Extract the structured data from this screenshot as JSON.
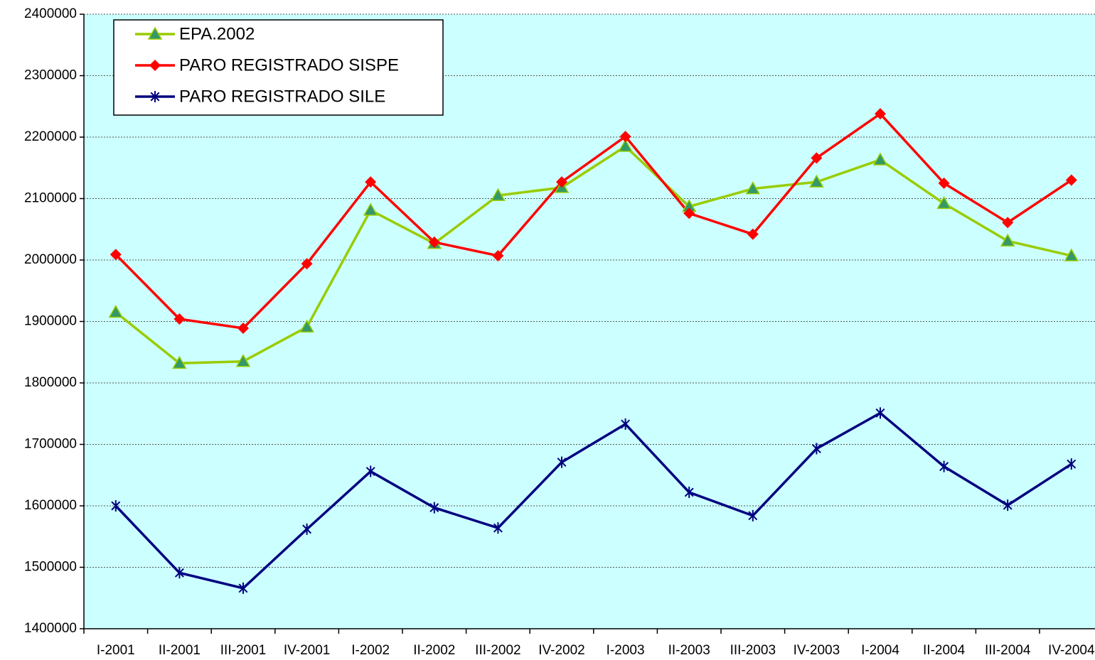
{
  "chart_data": {
    "type": "line",
    "categories": [
      "I-2001",
      "II-2001",
      "III-2001",
      "IV-2001",
      "I-2002",
      "II-2002",
      "III-2002",
      "IV-2002",
      "I-2003",
      "II-2003",
      "III-2003",
      "IV-2003",
      "I-2004",
      "II-2004",
      "III-2004",
      "IV-2004"
    ],
    "series": [
      {
        "name": "EPA.2002",
        "color": "#99cc00",
        "marker_color": "#339966",
        "marker": "triangle",
        "values": [
          1915000,
          1832000,
          1835000,
          1891000,
          2081000,
          2027000,
          2105000,
          2118000,
          2185000,
          2087000,
          2116000,
          2127000,
          2163000,
          2092000,
          2031000,
          2007000
        ]
      },
      {
        "name": "PARO REGISTRADO SISPE",
        "color": "#ff0000",
        "marker_color": "#ff0000",
        "marker": "diamond",
        "values": [
          2009000,
          1904000,
          1889000,
          1994000,
          2127000,
          2029000,
          2007000,
          2127000,
          2201000,
          2076000,
          2042000,
          2166000,
          2238000,
          2125000,
          2061000,
          2130000
        ]
      },
      {
        "name": "PARO REGISTRADO SILE",
        "color": "#000080",
        "marker_color": "#000080",
        "marker": "asterisk",
        "values": [
          1600000,
          1491000,
          1466000,
          1562000,
          1656000,
          1597000,
          1564000,
          1671000,
          1733000,
          1622000,
          1584000,
          1693000,
          1751000,
          1664000,
          1601000,
          1668000
        ]
      }
    ],
    "ylim": [
      1400000,
      2400000
    ],
    "yticks": [
      1400000,
      1500000,
      1600000,
      1700000,
      1800000,
      1900000,
      2000000,
      2100000,
      2200000,
      2300000,
      2400000
    ],
    "grid": true,
    "legend": "upper left",
    "background": "#ccffff"
  }
}
